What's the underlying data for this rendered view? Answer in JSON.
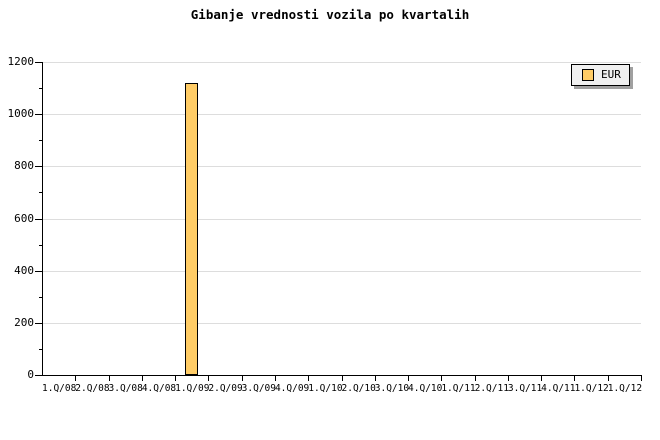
{
  "chart_data": {
    "type": "bar",
    "title": "Gibanje vrednosti vozila po kvartalih",
    "categories": [
      "1.Q/08",
      "2.Q/08",
      "3.Q/08",
      "4.Q/08",
      "1.Q/09",
      "2.Q/09",
      "3.Q/09",
      "4.Q/09",
      "1.Q/10",
      "2.Q/10",
      "3.Q/10",
      "4.Q/10",
      "1.Q/11",
      "2.Q/11",
      "3.Q/11",
      "4.Q/11",
      "1.Q/12",
      "1.Q/12"
    ],
    "series": [
      {
        "name": "EUR",
        "color": "#FFCC66",
        "border_color": "#000000",
        "values": [
          0,
          0,
          0,
          0,
          1120,
          0,
          0,
          0,
          0,
          0,
          0,
          0,
          0,
          0,
          0,
          0,
          0,
          0
        ]
      }
    ],
    "xlabel": "",
    "ylabel": "",
    "ylim": [
      0,
      1200
    ],
    "ytick_major": 200,
    "ytick_minor": 100,
    "grid": true,
    "gridline_color": "#dddddd",
    "axis_color": "#000000",
    "legend_position": "top-right"
  },
  "legend": {
    "label": "EUR",
    "swatch_color": "#FFCC66",
    "background": "#f0f0f0",
    "shadow_color": "#a0a0a0"
  }
}
